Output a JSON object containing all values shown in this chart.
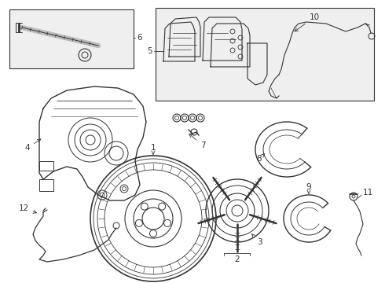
{
  "bg_color": "#ffffff",
  "line_color": "#333333",
  "box_fill": "#efefef",
  "fig_width": 4.9,
  "fig_height": 3.6,
  "dpi": 100
}
